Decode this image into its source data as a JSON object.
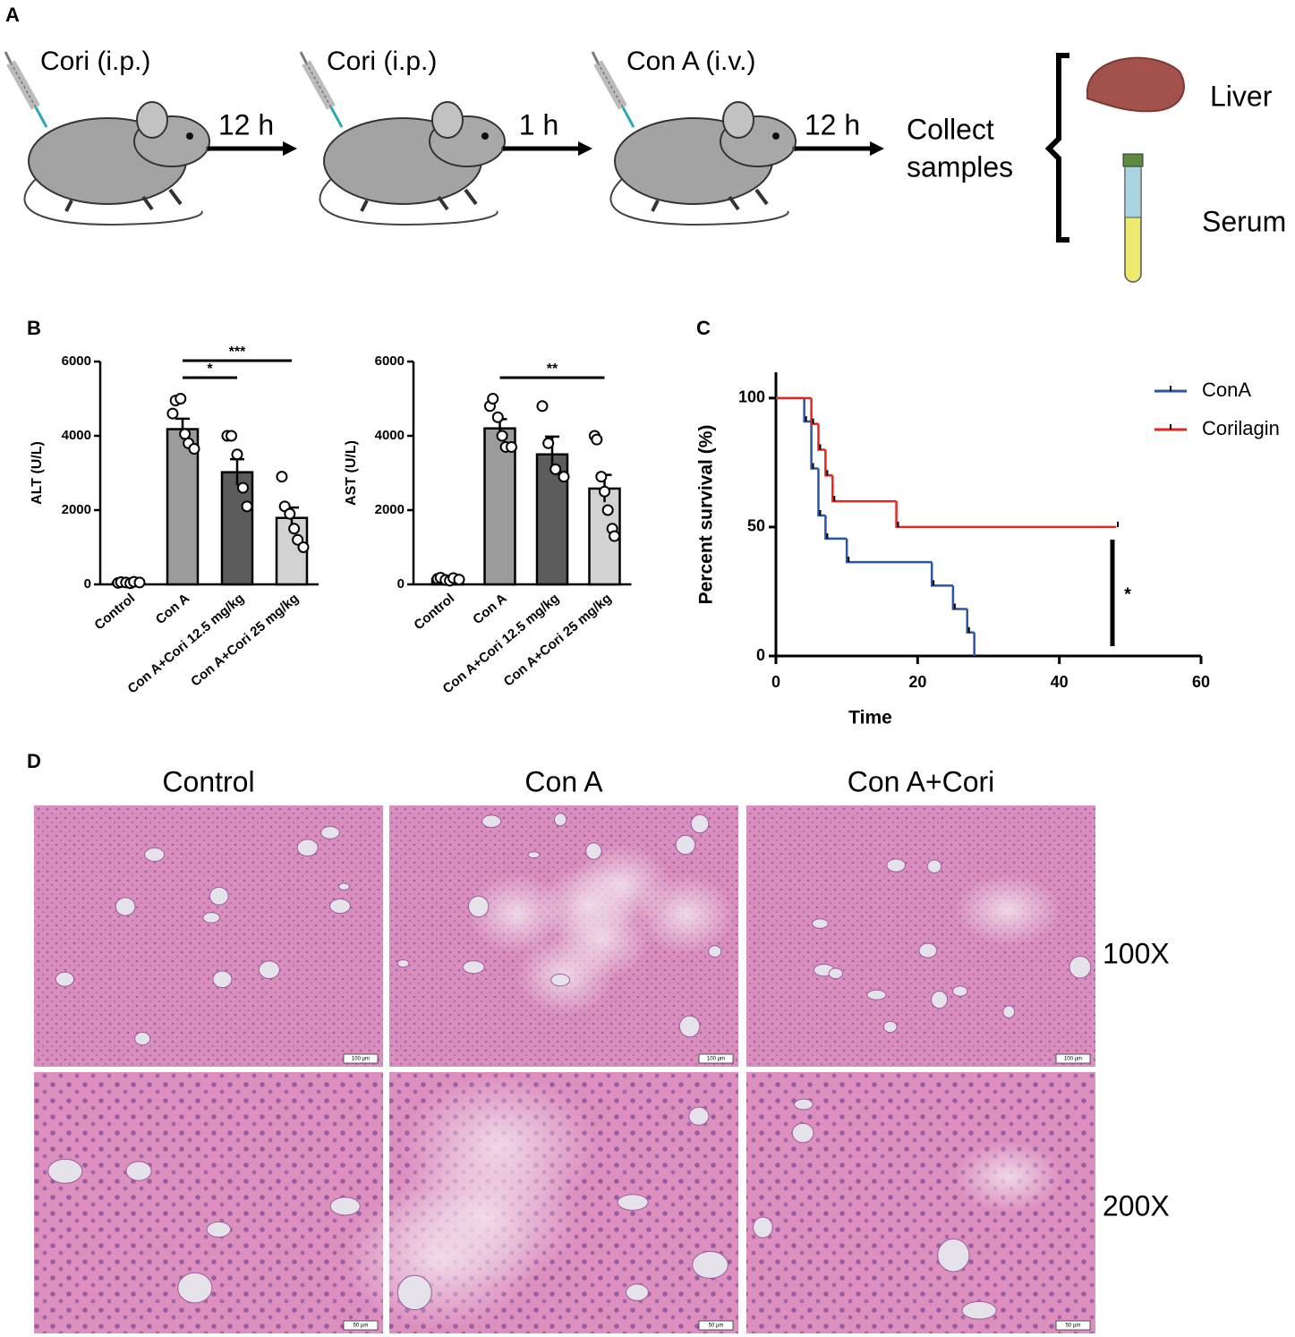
{
  "panel_labels": [
    "A",
    "B",
    "C",
    "D"
  ],
  "scheme": {
    "steps": [
      "Cori (i.p.)",
      "Cori (i.p.)",
      "Con A (i.v.)"
    ],
    "intervals": [
      "12 h",
      "1 h",
      "12 h"
    ],
    "collect": [
      "Collect",
      "samples"
    ],
    "samples": [
      "Liver",
      "Serum"
    ]
  },
  "chart_data": [
    {
      "type": "bar",
      "ylabel": "ALT (U/L)",
      "categories": [
        "Control",
        "Con A",
        "Con A+Cori 12.5 mg/kg",
        "Con A+Cori 25 mg/kg"
      ],
      "values": [
        50,
        4180,
        3020,
        1790
      ],
      "errors": [
        20,
        280,
        350,
        280
      ],
      "points": [
        [
          40,
          60,
          50,
          30,
          70,
          50
        ],
        [
          4600,
          4950,
          5000,
          4050,
          3800,
          3650
        ],
        [
          4000,
          4000,
          3500,
          2600,
          2100
        ],
        [
          2900,
          2100,
          1900,
          1500,
          1200,
          1000
        ]
      ],
      "colors": [
        "#ffffff",
        "#9b9b9b",
        "#5c5c5c",
        "#d2d2d2"
      ],
      "ylim": [
        0,
        6000
      ],
      "yticks": [
        0,
        2000,
        4000,
        6000
      ],
      "significance": [
        {
          "label": "*",
          "from": 1,
          "to": 2
        },
        {
          "label": "***",
          "from": 1,
          "to": 3
        }
      ]
    },
    {
      "type": "bar",
      "ylabel": "AST (U/L)",
      "categories": [
        "Control",
        "Con A",
        "Con A+Cori 12.5 mg/kg",
        "Con A+Cori 25 mg/kg"
      ],
      "values": [
        150,
        4200,
        3500,
        2580
      ],
      "errors": [
        40,
        250,
        480,
        370
      ],
      "points": [
        [
          150,
          180,
          120,
          100,
          170,
          130
        ],
        [
          4800,
          5000,
          4500,
          4000,
          3700,
          3700
        ],
        [
          4800,
          3800,
          3100,
          2900
        ],
        [
          4000,
          3900,
          2900,
          2500,
          2000,
          1500,
          1300
        ]
      ],
      "colors": [
        "#ffffff",
        "#9b9b9b",
        "#5c5c5c",
        "#d2d2d2"
      ],
      "ylim": [
        0,
        6000
      ],
      "yticks": [
        0,
        2000,
        4000,
        6000
      ],
      "significance": [
        {
          "label": "**",
          "from": 1,
          "to": 3
        }
      ]
    },
    {
      "type": "survival",
      "xlabel": "Time",
      "ylabel": "Percent survival (%)",
      "xlim": [
        0,
        60
      ],
      "xticks": [
        0,
        20,
        40,
        60
      ],
      "ylim": [
        0,
        110
      ],
      "yticks": [
        0,
        50,
        100
      ],
      "legend": "upper right",
      "series": [
        {
          "name": "ConA",
          "color": "#2a55a8",
          "x": [
            0,
            4,
            5,
            6,
            7,
            10,
            22,
            25,
            27,
            28
          ],
          "values": [
            100,
            90.9,
            72.7,
            54.5,
            45.5,
            36.4,
            27.3,
            18.2,
            9.1,
            0
          ]
        },
        {
          "name": "Corilagin",
          "color": "#e52620",
          "x": [
            0,
            5,
            6,
            7,
            8,
            17,
            48
          ],
          "values": [
            100,
            90,
            80,
            70,
            60,
            50,
            50
          ]
        }
      ],
      "significance": {
        "label": "*"
      }
    }
  ],
  "histology": {
    "columns": [
      "Control",
      "Con A",
      "Con A+Cori"
    ],
    "rows": [
      {
        "label": "100X",
        "scale_bar": "100 µm"
      },
      {
        "label": "200X",
        "scale_bar": "50 µm"
      }
    ]
  }
}
